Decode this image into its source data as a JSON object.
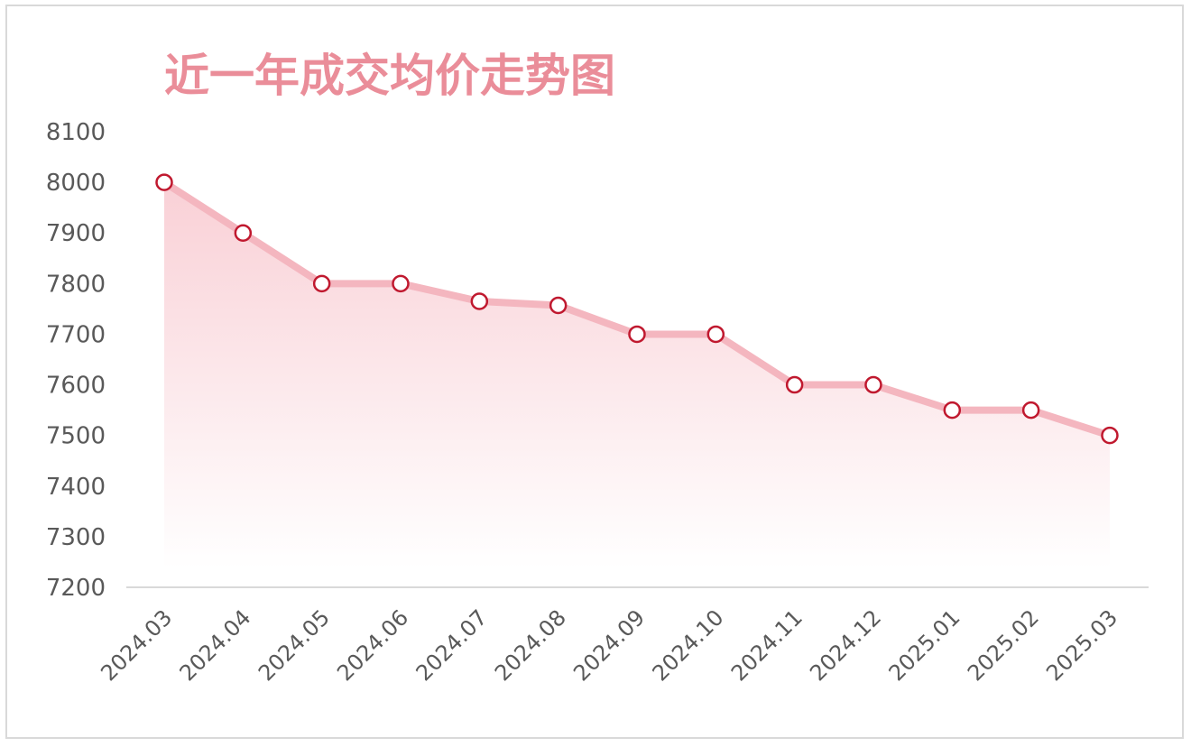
{
  "chart_data": {
    "type": "area",
    "title": "近一年成交均价走势图",
    "xlabel": "",
    "ylabel": "",
    "categories": [
      "2024.03",
      "2024.04",
      "2024.05",
      "2024.06",
      "2024.07",
      "2024.08",
      "2024.09",
      "2024.10",
      "2024.11",
      "2024.12",
      "2025.01",
      "2025.02",
      "2025.03"
    ],
    "series": [
      {
        "values": [
          8000,
          7900,
          7800,
          7800,
          7765,
          7757,
          7700,
          7700,
          7600,
          7600,
          7550,
          7550,
          7500
        ]
      }
    ],
    "ylim": [
      7200,
      8100
    ],
    "yticks": [
      7200,
      7300,
      7400,
      7500,
      7600,
      7700,
      7800,
      7900,
      8000,
      8100
    ],
    "grid": false,
    "legend": "none",
    "colors": {
      "line": "#f4b6bf",
      "marker_stroke": "#c0192f",
      "marker_fill": "#ffffff",
      "area_top": "#f9d0d6",
      "area_bottom": "#ffffff",
      "title": "#ea8d99",
      "axis": "#d9d9d9",
      "text": "#595959"
    }
  }
}
